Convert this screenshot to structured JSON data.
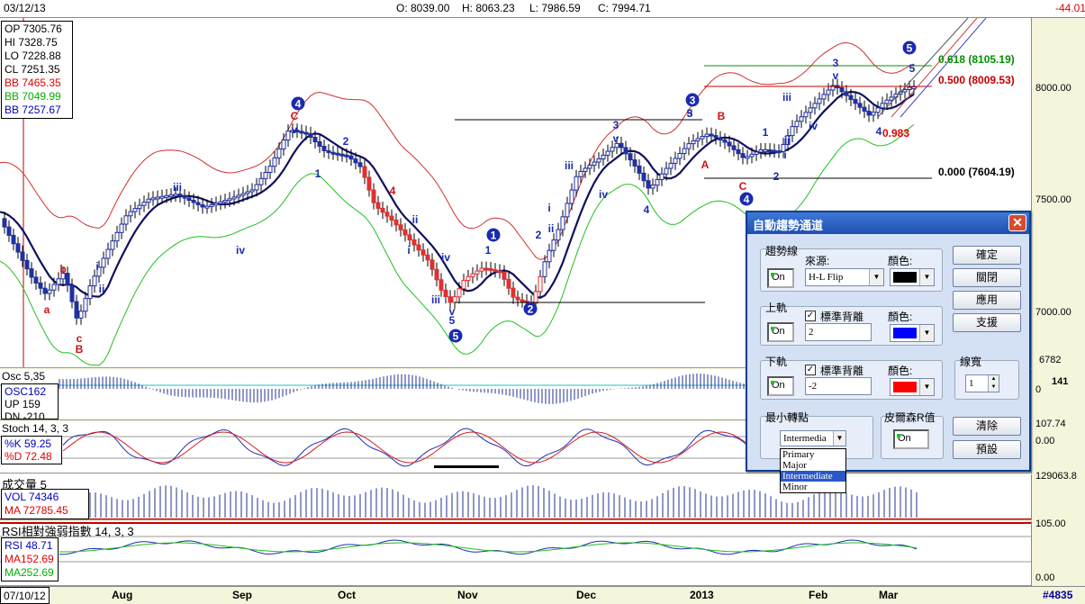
{
  "topbar": {
    "date": "03/12/13",
    "open": "O: 8039.00",
    "high": "H: 8063.23",
    "low": "L: 7986.59",
    "close": "C: 7994.71",
    "change": "-44.01"
  },
  "main_info": [
    {
      "text": "OP 7305.76",
      "color": "#000000"
    },
    {
      "text": "HI 7328.75",
      "color": "#000000"
    },
    {
      "text": "LO 7228.88",
      "color": "#000000"
    },
    {
      "text": "CL 7251.35",
      "color": "#000000"
    },
    {
      "text": "BB 7465.35",
      "color": "#e00000"
    },
    {
      "text": "BB 7049.99",
      "color": "#00b000"
    },
    {
      "text": "BB 7257.67",
      "color": "#0000c0"
    }
  ],
  "price_axis": [
    "8000.00",
    "7500.00",
    "7000.00",
    "6782"
  ],
  "fib_labels": {
    "f618": "0.618 (8105.19)",
    "f500": "0.500 (8009.53)",
    "f000": "0.000 (7604.19)",
    "ratio": "0.983"
  },
  "wave_labels": {
    "circled": [
      "4",
      "1",
      "2",
      "3",
      "4",
      "5",
      "5"
    ],
    "small": [
      "a",
      "b",
      "c",
      "B",
      "i",
      "ii",
      "iii",
      "iv",
      "C",
      "v",
      "1",
      "2",
      "4",
      "ii",
      "i",
      "iii",
      "iv",
      "v",
      "5",
      "1",
      "2",
      "i",
      "ii",
      "iii",
      "iv",
      "3",
      "v",
      "4",
      "3",
      "5",
      "A",
      "B",
      "C",
      "1",
      "2",
      "i",
      "ii",
      "iii",
      "iv",
      "3",
      "v",
      "4",
      "5"
    ]
  },
  "osc_panel": {
    "title": "Osc 5,35",
    "osc": "OSC162",
    "up": "UP   159",
    "dn": "DN -210",
    "axis_value": "141",
    "axis_zero": "0"
  },
  "stoch_panel": {
    "title": "Stoch 14, 3, 3",
    "k": "%K  59.25",
    "d": "%D  72.48",
    "axis_top": "107.74",
    "axis_bottom": "0.00"
  },
  "vol_panel": {
    "title": "成交量 5",
    "vol": "VOL 74346",
    "ma": "MA  72785.45",
    "axis_top": "129063.8"
  },
  "rsi_panel": {
    "title": "RSI相對強弱指數 14, 3, 3",
    "rsi": "RSI  48.71",
    "ma1": "MA152.69",
    "ma2": "MA252.69",
    "axis_top": "105.00",
    "axis_bottom": "0.00"
  },
  "time_axis": {
    "start": "07/10/12",
    "months": [
      "Aug",
      "Sep",
      "Oct",
      "Nov",
      "Dec",
      "2013",
      "Feb",
      "Mar"
    ],
    "count": "#4835"
  },
  "dialog": {
    "title": "自動趨勢通道",
    "trend_group": "趨勢線",
    "source_label": "來源:",
    "source_value": "H-L Flip",
    "color_label": "顏色:",
    "on_label": "On",
    "upper_group": "上軌",
    "upper_check": "標準背離",
    "upper_value": "2",
    "lower_group": "下軌",
    "lower_check": "標準背離",
    "lower_value": "-2",
    "width_group": "線寬",
    "width_value": "1",
    "min_turn_group": "最小轉點",
    "min_turn_value": "Intermedia",
    "pearson_group": "皮爾森R值",
    "options": [
      "Primary",
      "Major",
      "Intermediate",
      "Minor"
    ],
    "buttons": {
      "ok": "確定",
      "close": "關閉",
      "apply": "應用",
      "help": "支援",
      "clear": "清除",
      "default": "預設"
    },
    "colors": {
      "trend": "#000000",
      "upper": "#0000ff",
      "lower": "#ff0000"
    }
  }
}
